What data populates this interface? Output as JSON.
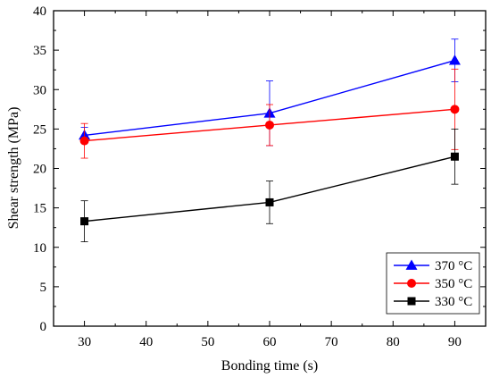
{
  "chart_data": {
    "type": "line",
    "xlabel": "Bonding time (s)",
    "ylabel": "Shear strength (MPa)",
    "xlim": [
      25,
      95
    ],
    "ylim": [
      0,
      40
    ],
    "xticks": [
      "30",
      "40",
      "50",
      "60",
      "70",
      "80",
      "90"
    ],
    "yticks": [
      "0",
      "5",
      "10",
      "15",
      "20",
      "25",
      "30",
      "35",
      "40"
    ],
    "x": [
      30,
      60,
      90
    ],
    "legend_position": "bottom-right",
    "grid": false,
    "series": [
      {
        "name": "370 °C",
        "color": "#0000ff",
        "marker": "triangle",
        "values": [
          24.2,
          27.0,
          33.7
        ],
        "errors": [
          1.0,
          4.1,
          2.7
        ]
      },
      {
        "name": "350 °C",
        "color": "#ff0000",
        "marker": "circle",
        "values": [
          23.5,
          25.5,
          27.5
        ],
        "errors": [
          2.2,
          2.6,
          5.1
        ]
      },
      {
        "name": "330 °C",
        "color": "#000000",
        "marker": "square",
        "values": [
          13.3,
          15.7,
          21.5
        ],
        "errors": [
          2.6,
          2.7,
          3.5
        ]
      }
    ]
  }
}
